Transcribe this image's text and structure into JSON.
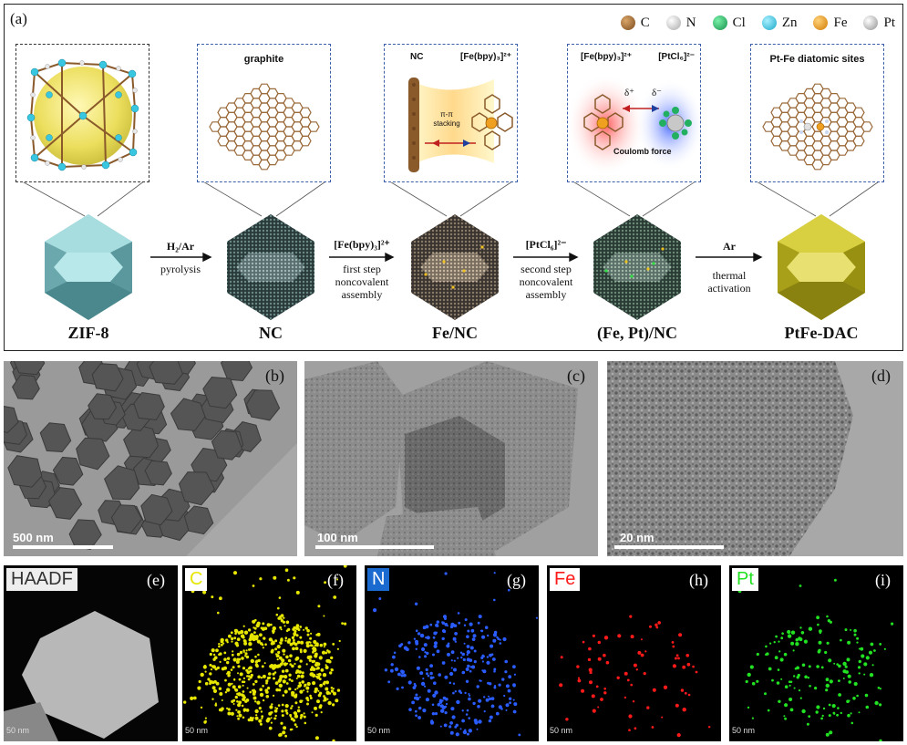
{
  "panel_a": {
    "label": "(a)",
    "legend": [
      {
        "symbol": "C",
        "color": "#8a5a2b"
      },
      {
        "symbol": "N",
        "color": "#d8d8d8"
      },
      {
        "symbol": "Cl",
        "color": "#22b060"
      },
      {
        "symbol": "Zn",
        "color": "#38c6e0"
      },
      {
        "symbol": "Fe",
        "color": "#f0a020"
      },
      {
        "symbol": "Pt",
        "color": "#c8c8c8"
      }
    ],
    "insets": {
      "nc_title": "graphite",
      "fenc_nc": "NC",
      "fenc_complex": "[Fe(bpy)₃]²⁺",
      "fenc_stacking": "π-π stacking",
      "fept_complex": "[Fe(bpy)₃]²⁺",
      "fept_anion": "[PtCl₆]²⁻",
      "fept_delta_plus": "δ⁺",
      "fept_delta_minus": "δ⁻",
      "fept_force": "Coulomb force",
      "dac_title": "Pt-Fe diatomic sites"
    },
    "steps": [
      {
        "above": "H₂/Ar",
        "below": "pyrolysis"
      },
      {
        "above": "[Fe(bpy)₃]²⁺",
        "below1": "first step",
        "below2": "noncovalent",
        "below3": "assembly"
      },
      {
        "above": "[PtCl₆]²⁻",
        "below1": "second step",
        "below2": "noncovalent",
        "below3": "assembly"
      },
      {
        "above": "Ar",
        "below1": "thermal",
        "below2": "activation"
      }
    ],
    "materials": [
      "ZIF-8",
      "NC",
      "Fe/NC",
      "(Fe, Pt)/NC",
      "PtFe-DAC"
    ]
  },
  "tem": [
    {
      "label": "(b)",
      "scale": "500 nm"
    },
    {
      "label": "(c)",
      "scale": "100 nm"
    },
    {
      "label": "(d)",
      "scale": "20 nm"
    }
  ],
  "mapping": [
    {
      "label": "(e)",
      "tag": "HAADF",
      "scale": "50 nm",
      "color": "#d0d0d0"
    },
    {
      "label": "(f)",
      "tag": "C",
      "scale": "50 nm",
      "color": "#e6e600"
    },
    {
      "label": "(g)",
      "tag": "N",
      "scale": "50 nm",
      "color": "#2a5cff"
    },
    {
      "label": "(h)",
      "tag": "Fe",
      "scale": "50 nm",
      "color": "#ff1a1a"
    },
    {
      "label": "(i)",
      "tag": "Pt",
      "scale": "50 nm",
      "color": "#22e022"
    }
  ]
}
